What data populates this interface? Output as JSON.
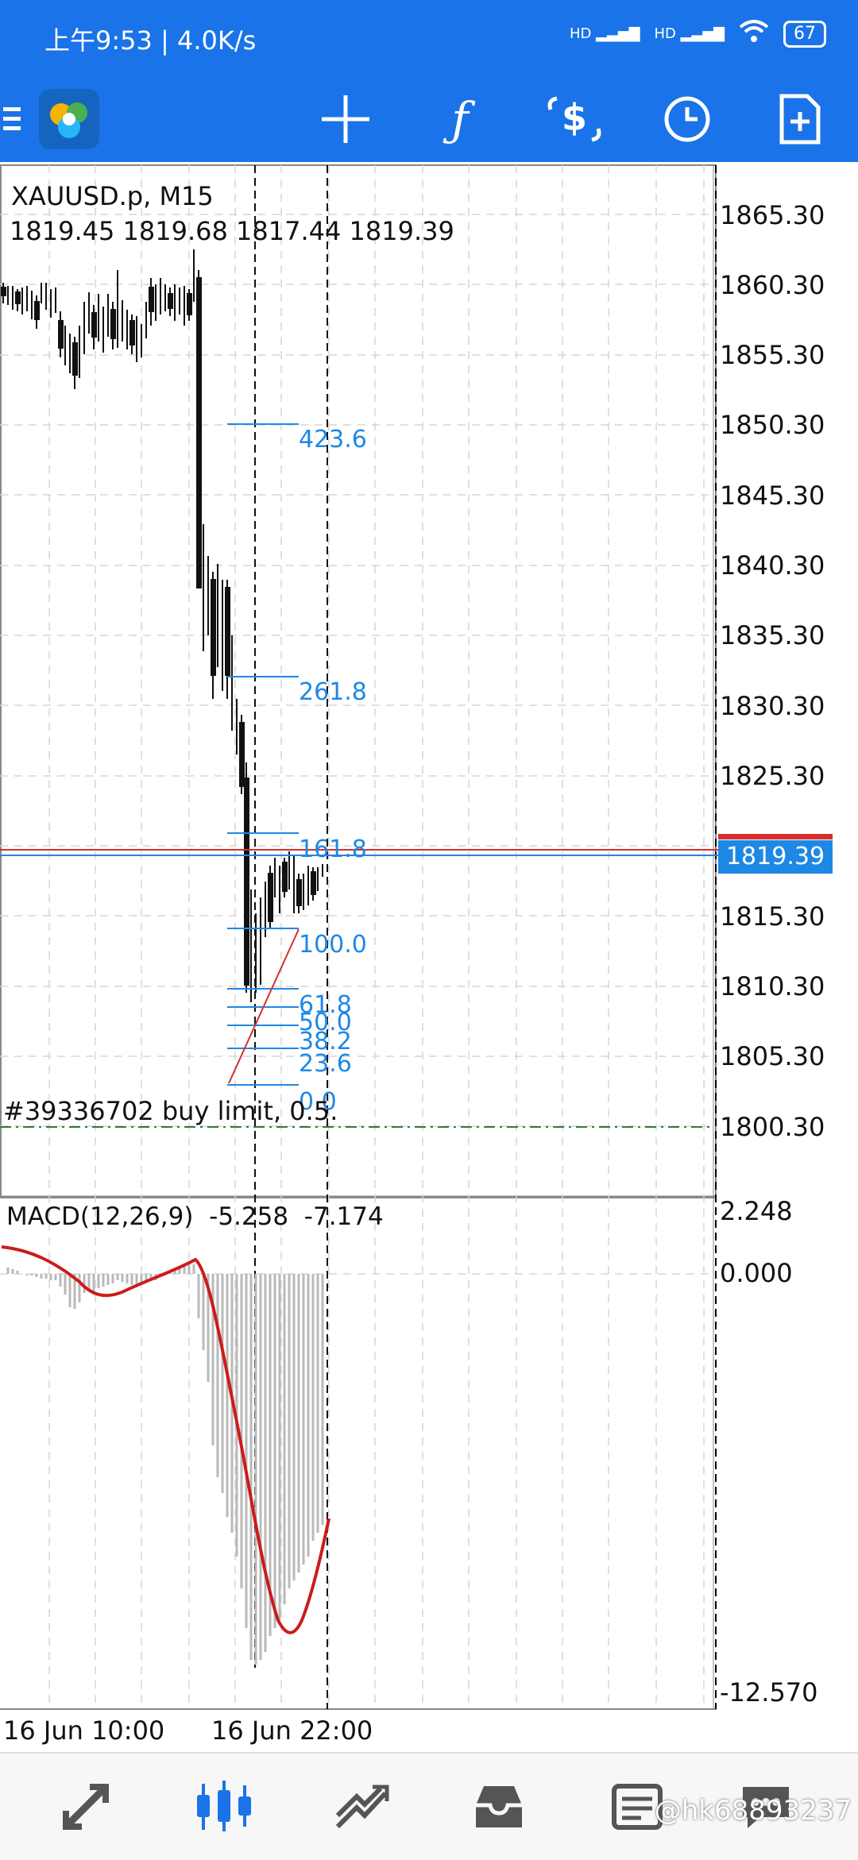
{
  "status": {
    "time": "上午9:53 | 4.0K/s",
    "net1": "HD",
    "net2": "HD",
    "battery": "67"
  },
  "toolbar": {
    "items": [
      {
        "name": "crosshair",
        "icon": "crosshair-icon"
      },
      {
        "name": "indicators",
        "icon": "function-icon"
      },
      {
        "name": "trade",
        "icon": "dollar-arrows-icon"
      },
      {
        "name": "timeframe",
        "icon": "clock-icon"
      },
      {
        "name": "new-order",
        "icon": "add-document-icon"
      }
    ]
  },
  "chart": {
    "symbol": "XAUUSD.p, M15",
    "ohlc": "1819.45 1819.68 1817.44 1819.39",
    "price_axis": [
      "1865.30",
      "1860.30",
      "1855.30",
      "1850.30",
      "1845.30",
      "1840.30",
      "1835.30",
      "1830.30",
      "1825.30",
      "1815.30",
      "1810.30",
      "1805.30",
      "1800.30"
    ],
    "current_price": "1819.39",
    "fib_levels": [
      "423.6",
      "261.8",
      "161.8",
      "100.0",
      "61.8",
      "50.0",
      "38.2",
      "23.6",
      "0.0"
    ],
    "order_label": "#39336702 buy limit, 0.5.",
    "macd_label": "MACD(12,26,9)  -5.258  -7.174",
    "macd_axis": [
      "2.248",
      "0.000",
      "-12.570"
    ],
    "time_axis": [
      "16 Jun 10:00",
      "16 Jun 22:00"
    ],
    "colors": {
      "accent": "#1a73e8",
      "bid": "#d32f2f",
      "ask": "#1e88e5",
      "fib": "#1e88e5",
      "signal": "#cc1b1b"
    }
  },
  "nav": {
    "items": [
      {
        "name": "quotes",
        "icon": "quotes-arrows-icon"
      },
      {
        "name": "chart",
        "icon": "candles-icon",
        "active": true
      },
      {
        "name": "trade",
        "icon": "trend-icon"
      },
      {
        "name": "history",
        "icon": "inbox-icon"
      },
      {
        "name": "messages",
        "icon": "news-icon"
      },
      {
        "name": "chat",
        "icon": "chat-icon"
      }
    ],
    "watermark": "@hk68893237"
  }
}
